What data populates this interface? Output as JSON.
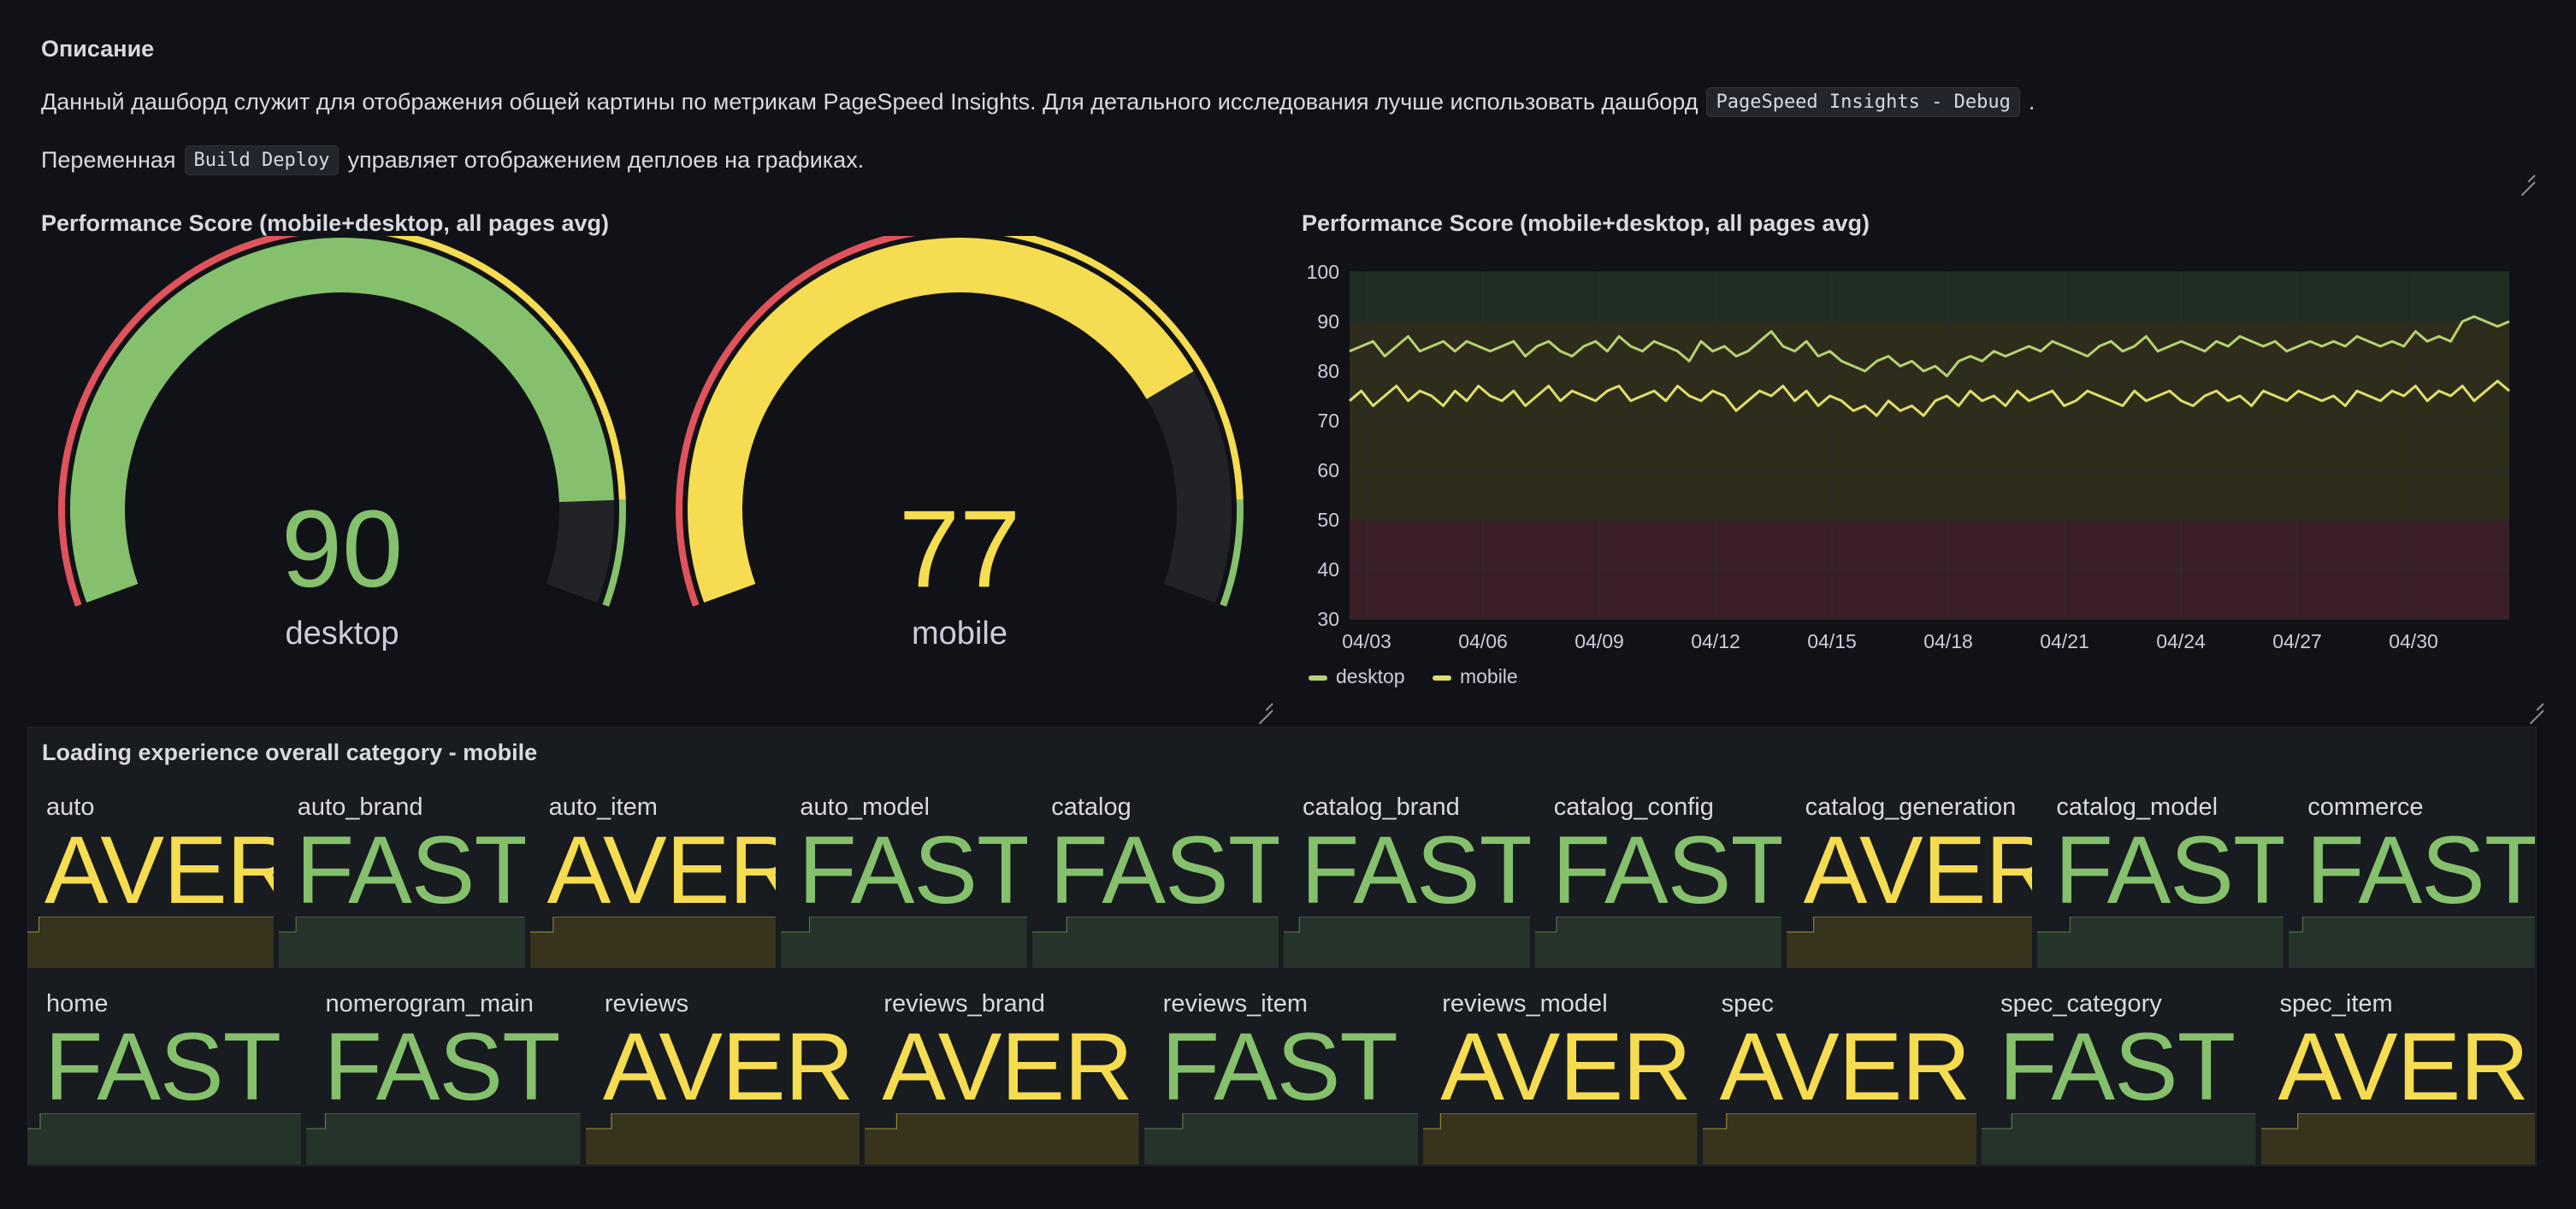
{
  "description": {
    "title": "Описание",
    "line1_prefix": "Данный дашборд служит для отображения общей картины по метрикам PageSpeed Insights. Для детального исследования лучше использовать дашборд",
    "line1_code": "PageSpeed Insights - Debug",
    "line1_suffix": ".",
    "line2_prefix": "Переменная",
    "line2_code": "Build Deploy",
    "line2_suffix": "управляет отображением деплоев на графиках."
  },
  "gauges": {
    "title": "Performance Score (mobile+desktop, all pages avg)",
    "items": [
      {
        "label": "desktop",
        "value": 90,
        "display": "90",
        "color": "#85c06c"
      },
      {
        "label": "mobile",
        "value": 77,
        "display": "77",
        "color": "#f5dc50"
      }
    ],
    "thresholds": [
      {
        "from": 0,
        "to": 50,
        "color": "#e0535c"
      },
      {
        "from": 50,
        "to": 90,
        "color": "#f5dc50"
      },
      {
        "from": 90,
        "to": 100,
        "color": "#85c06c"
      }
    ]
  },
  "timeseries": {
    "title": "Performance Score (mobile+desktop, all pages avg)",
    "legend": [
      {
        "name": "desktop",
        "color": "#b7d172"
      },
      {
        "name": "mobile",
        "color": "#dce06a"
      }
    ]
  },
  "chart_data": {
    "type": "line",
    "ylim": [
      30,
      100
    ],
    "yticks": [
      "30",
      "40",
      "50",
      "60",
      "70",
      "80",
      "90",
      "100"
    ],
    "xticks": [
      "04/03",
      "04/06",
      "04/09",
      "04/12",
      "04/15",
      "04/18",
      "04/21",
      "04/24",
      "04/27",
      "04/30"
    ],
    "bands": [
      {
        "from": 30,
        "to": 50,
        "color": "#3a1f27"
      },
      {
        "from": 50,
        "to": 90,
        "color": "#2e2c1a"
      },
      {
        "from": 90,
        "to": 100,
        "color": "#1e2e22"
      }
    ],
    "series": [
      {
        "name": "desktop",
        "color": "#b7d172",
        "values": [
          84,
          85,
          86,
          83,
          85,
          87,
          84,
          85,
          86,
          84,
          86,
          85,
          84,
          85,
          86,
          83,
          85,
          86,
          84,
          83,
          85,
          86,
          84,
          87,
          85,
          84,
          86,
          85,
          84,
          82,
          86,
          84,
          85,
          83,
          84,
          86,
          88,
          85,
          84,
          86,
          83,
          84,
          82,
          81,
          80,
          82,
          83,
          81,
          82,
          80,
          81,
          79,
          82,
          83,
          82,
          84,
          83,
          84,
          85,
          84,
          86,
          85,
          84,
          83,
          85,
          86,
          84,
          85,
          87,
          84,
          85,
          86,
          85,
          84,
          86,
          85,
          87,
          86,
          85,
          86,
          84,
          85,
          86,
          85,
          86,
          85,
          87,
          86,
          85,
          86,
          85,
          88,
          86,
          87,
          86,
          90,
          91,
          90,
          89,
          90
        ]
      },
      {
        "name": "mobile",
        "color": "#dce06a",
        "values": [
          74,
          76,
          73,
          75,
          77,
          74,
          76,
          75,
          73,
          76,
          74,
          77,
          75,
          74,
          76,
          73,
          75,
          77,
          74,
          76,
          75,
          74,
          76,
          77,
          74,
          75,
          76,
          74,
          77,
          75,
          74,
          76,
          75,
          72,
          74,
          76,
          75,
          77,
          74,
          76,
          73,
          75,
          74,
          72,
          73,
          71,
          74,
          72,
          73,
          71,
          74,
          75,
          73,
          76,
          74,
          75,
          73,
          76,
          74,
          75,
          76,
          73,
          74,
          76,
          75,
          74,
          73,
          76,
          74,
          75,
          76,
          74,
          73,
          75,
          76,
          74,
          75,
          73,
          76,
          75,
          74,
          76,
          75,
          74,
          75,
          73,
          76,
          75,
          74,
          76,
          75,
          77,
          74,
          76,
          75,
          77,
          74,
          76,
          78,
          76
        ]
      }
    ]
  },
  "stats": {
    "title": "Loading experience overall category - mobile",
    "row1": [
      {
        "name": "auto",
        "value": "AVER",
        "status": "avg"
      },
      {
        "name": "auto_brand",
        "value": "FAST",
        "status": "fast"
      },
      {
        "name": "auto_item",
        "value": "AVER",
        "status": "avg"
      },
      {
        "name": "auto_model",
        "value": "FAST",
        "status": "fast"
      },
      {
        "name": "catalog",
        "value": "FAST",
        "status": "fast"
      },
      {
        "name": "catalog_brand",
        "value": "FAST",
        "status": "fast"
      },
      {
        "name": "catalog_config",
        "value": "FAST",
        "status": "fast"
      },
      {
        "name": "catalog_generation",
        "value": "AVER",
        "status": "avg"
      },
      {
        "name": "catalog_model",
        "value": "FAST",
        "status": "fast"
      },
      {
        "name": "commerce",
        "value": "FAST",
        "status": "fast"
      }
    ],
    "row2": [
      {
        "name": "home",
        "value": "FAST",
        "status": "fast"
      },
      {
        "name": "nomerogram_main",
        "value": "FAST",
        "status": "fast"
      },
      {
        "name": "reviews",
        "value": "AVER",
        "status": "avg"
      },
      {
        "name": "reviews_brand",
        "value": "AVER",
        "status": "avg"
      },
      {
        "name": "reviews_item",
        "value": "FAST",
        "status": "fast"
      },
      {
        "name": "reviews_model",
        "value": "AVER",
        "status": "avg"
      },
      {
        "name": "spec",
        "value": "AVER",
        "status": "avg"
      },
      {
        "name": "spec_category",
        "value": "FAST",
        "status": "fast"
      },
      {
        "name": "spec_item",
        "value": "AVER",
        "status": "avg"
      }
    ],
    "colors": {
      "fast": "#85c06c",
      "avg": "#f5dc50",
      "fast_bg": "#26332a",
      "avg_bg": "#37331d"
    }
  }
}
